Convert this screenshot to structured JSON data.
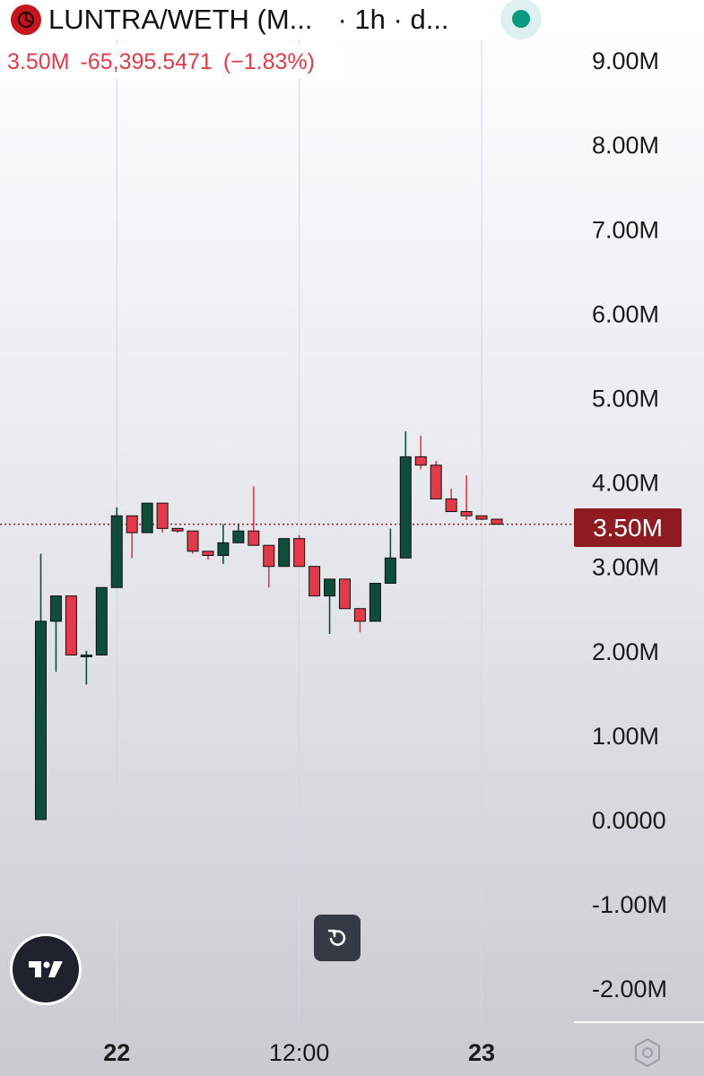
{
  "header": {
    "pair": "LUNTRA/WETH (M...",
    "interval": "· 1h · d..."
  },
  "quote": {
    "last": "3.50M",
    "change": "-65,395.5471",
    "change_pct": "(−1.83%)"
  },
  "price_tag": "3.50M",
  "colors": {
    "up": "#0d4d3a",
    "down": "#e03a4b",
    "price_tag": "#8e1b22",
    "price_line": "#8e1b22",
    "status": "#089981"
  },
  "icons": {
    "logo": "luntra-logo-icon",
    "status": "connected-dot-icon",
    "brand": "tradingview-logo-icon",
    "reset": "reset-chart-icon",
    "settings": "settings-icon"
  },
  "chart_data": {
    "type": "candlestick",
    "interval": "1h",
    "y_axis": {
      "position": "right",
      "ticks": [
        9000000,
        8000000,
        7000000,
        6000000,
        5000000,
        4000000,
        3000000,
        2000000,
        1000000,
        0,
        -1000000,
        -2000000
      ],
      "tick_labels": [
        "9.00M",
        "8.00M",
        "7.00M",
        "6.00M",
        "5.00M",
        "4.00M",
        "3.00M",
        "2.00M",
        "1.00M",
        "0.0000",
        "-1.00M",
        "-2.00M"
      ]
    },
    "x_axis": {
      "labels": [
        {
          "label": "22",
          "index": 5,
          "bold": true
        },
        {
          "label": "12:00",
          "index": 17,
          "bold": false
        },
        {
          "label": "23",
          "index": 29,
          "bold": true
        }
      ]
    },
    "current_price": 3500000,
    "candles": [
      {
        "o": 0,
        "h": 3150000,
        "l": 0,
        "c": 2350000
      },
      {
        "o": 2350000,
        "h": 2650000,
        "l": 1750000,
        "c": 2650000
      },
      {
        "o": 2650000,
        "h": 2650000,
        "l": 1950000,
        "c": 1950000
      },
      {
        "o": 1950000,
        "h": 2000000,
        "l": 1600000,
        "c": 1950000
      },
      {
        "o": 1950000,
        "h": 2750000,
        "l": 1950000,
        "c": 2750000
      },
      {
        "o": 2750000,
        "h": 3700000,
        "l": 2750000,
        "c": 3600000
      },
      {
        "o": 3600000,
        "h": 3600000,
        "l": 3100000,
        "c": 3400000
      },
      {
        "o": 3400000,
        "h": 3750000,
        "l": 3400000,
        "c": 3750000
      },
      {
        "o": 3750000,
        "h": 3750000,
        "l": 3400000,
        "c": 3450000
      },
      {
        "o": 3450000,
        "h": 3450000,
        "l": 3400000,
        "c": 3420000
      },
      {
        "o": 3420000,
        "h": 3420000,
        "l": 3150000,
        "c": 3180000
      },
      {
        "o": 3180000,
        "h": 3180000,
        "l": 3080000,
        "c": 3130000
      },
      {
        "o": 3130000,
        "h": 3500000,
        "l": 3030000,
        "c": 3280000
      },
      {
        "o": 3280000,
        "h": 3500000,
        "l": 3280000,
        "c": 3420000
      },
      {
        "o": 3420000,
        "h": 3950000,
        "l": 3250000,
        "c": 3250000
      },
      {
        "o": 3250000,
        "h": 3250000,
        "l": 2750000,
        "c": 3000000
      },
      {
        "o": 3000000,
        "h": 3330000,
        "l": 3000000,
        "c": 3330000
      },
      {
        "o": 3330000,
        "h": 3370000,
        "l": 3000000,
        "c": 3000000
      },
      {
        "o": 3000000,
        "h": 3000000,
        "l": 2650000,
        "c": 2650000
      },
      {
        "o": 2650000,
        "h": 2850000,
        "l": 2200000,
        "c": 2850000
      },
      {
        "o": 2850000,
        "h": 2850000,
        "l": 2500000,
        "c": 2500000
      },
      {
        "o": 2500000,
        "h": 2500000,
        "l": 2220000,
        "c": 2350000
      },
      {
        "o": 2350000,
        "h": 2800000,
        "l": 2350000,
        "c": 2800000
      },
      {
        "o": 2800000,
        "h": 3450000,
        "l": 2800000,
        "c": 3100000
      },
      {
        "o": 3100000,
        "h": 4600000,
        "l": 3100000,
        "c": 4300000
      },
      {
        "o": 4300000,
        "h": 4550000,
        "l": 4150000,
        "c": 4200000
      },
      {
        "o": 4200000,
        "h": 4250000,
        "l": 3800000,
        "c": 3800000
      },
      {
        "o": 3800000,
        "h": 3920000,
        "l": 3650000,
        "c": 3650000
      },
      {
        "o": 3650000,
        "h": 4080000,
        "l": 3550000,
        "c": 3600000
      },
      {
        "o": 3600000,
        "h": 3600000,
        "l": 3550000,
        "c": 3560000
      },
      {
        "o": 3560000,
        "h": 3560000,
        "l": 3500000,
        "c": 3500000
      }
    ]
  }
}
